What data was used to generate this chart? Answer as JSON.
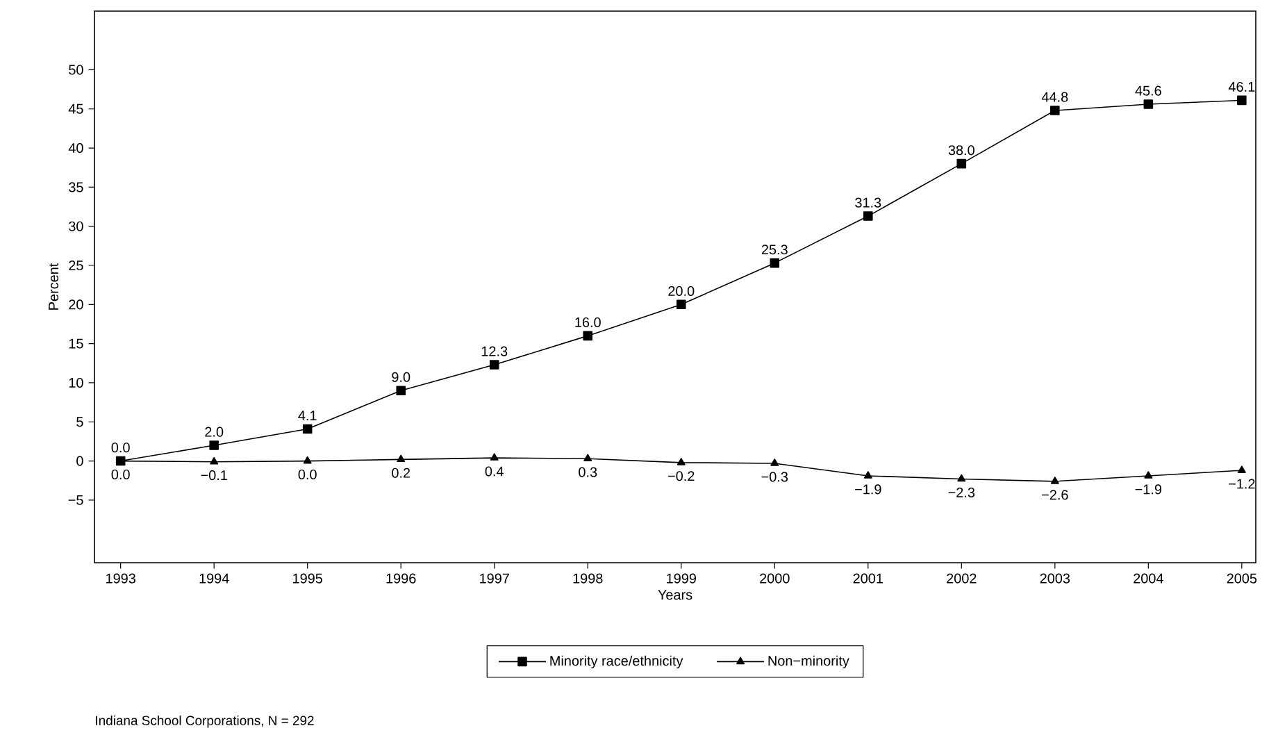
{
  "chart_data": {
    "type": "line",
    "xlabel": "Years",
    "ylabel": "Percent",
    "x": [
      1993,
      1994,
      1995,
      1996,
      1997,
      1998,
      1999,
      2000,
      2001,
      2002,
      2003,
      2004,
      2005
    ],
    "series": [
      {
        "name": "Minority race/ethnicity",
        "color": "#000000",
        "marker": "square",
        "values": [
          0.0,
          2.0,
          4.1,
          9.0,
          12.3,
          16.0,
          20.0,
          25.3,
          31.3,
          38.0,
          44.8,
          45.6,
          46.1
        ],
        "value_labels": [
          "0.0",
          "2.0",
          "4.1",
          "9.0",
          "12.3",
          "16.0",
          "20.0",
          "25.3",
          "31.3",
          "38.0",
          "44.8",
          "45.6",
          "46.1"
        ]
      },
      {
        "name": "Non−minority",
        "color": "#000000",
        "marker": "triangle",
        "values": [
          0.0,
          -0.1,
          0.0,
          0.2,
          0.4,
          0.3,
          -0.2,
          -0.3,
          -1.9,
          -2.3,
          -2.6,
          -1.9,
          -1.2
        ],
        "value_labels": [
          "0.0",
          "−0.1",
          "0.0",
          "0.2",
          "0.4",
          "0.3",
          "−0.2",
          "−0.3",
          "−1.9",
          "−2.3",
          "−2.6",
          "−1.9",
          "−1.2"
        ]
      }
    ],
    "xlim": [
      1992.72,
      2005.15
    ],
    "ylim": [
      -13,
      57.5
    ],
    "xticks": [
      1993,
      1994,
      1995,
      1996,
      1997,
      1998,
      1999,
      2000,
      2001,
      2002,
      2003,
      2004,
      2005
    ],
    "yticks": [
      {
        "value": -5,
        "label": "−5"
      },
      0,
      5,
      10,
      15,
      20,
      25,
      30,
      35,
      40,
      45,
      50
    ],
    "grid": false,
    "legend": "bottom",
    "line_style": "solid",
    "annotations": [
      "Indiana School Corporations, N = 292"
    ]
  }
}
